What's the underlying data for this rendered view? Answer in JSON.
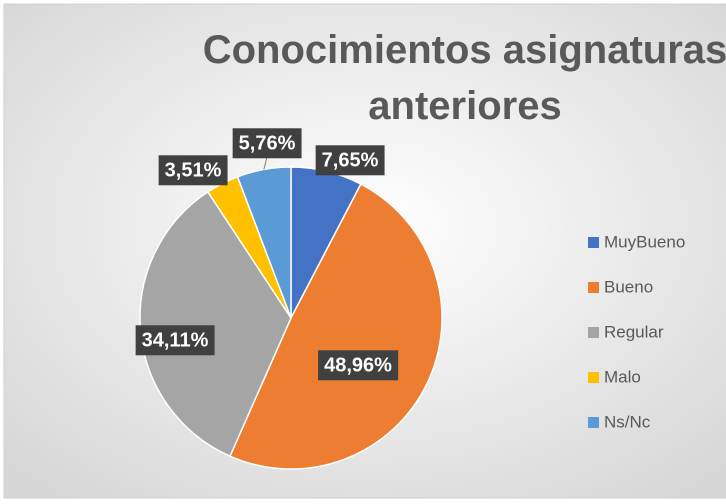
{
  "chart_data": {
    "type": "pie",
    "title": "Conocimientos asignaturas anteriores",
    "categories": [
      "MuyBueno",
      "Bueno",
      "Regular",
      "Malo",
      "Ns/Nc"
    ],
    "values": [
      7.65,
      48.96,
      34.11,
      3.51,
      5.76
    ],
    "value_labels": [
      "7,65%",
      "48,96%",
      "34,11%",
      "3,51%",
      "5,76%"
    ],
    "colors": [
      "#4472c4",
      "#ed7d31",
      "#a5a5a5",
      "#ffc000",
      "#5b9bd5"
    ],
    "legend": "right"
  }
}
